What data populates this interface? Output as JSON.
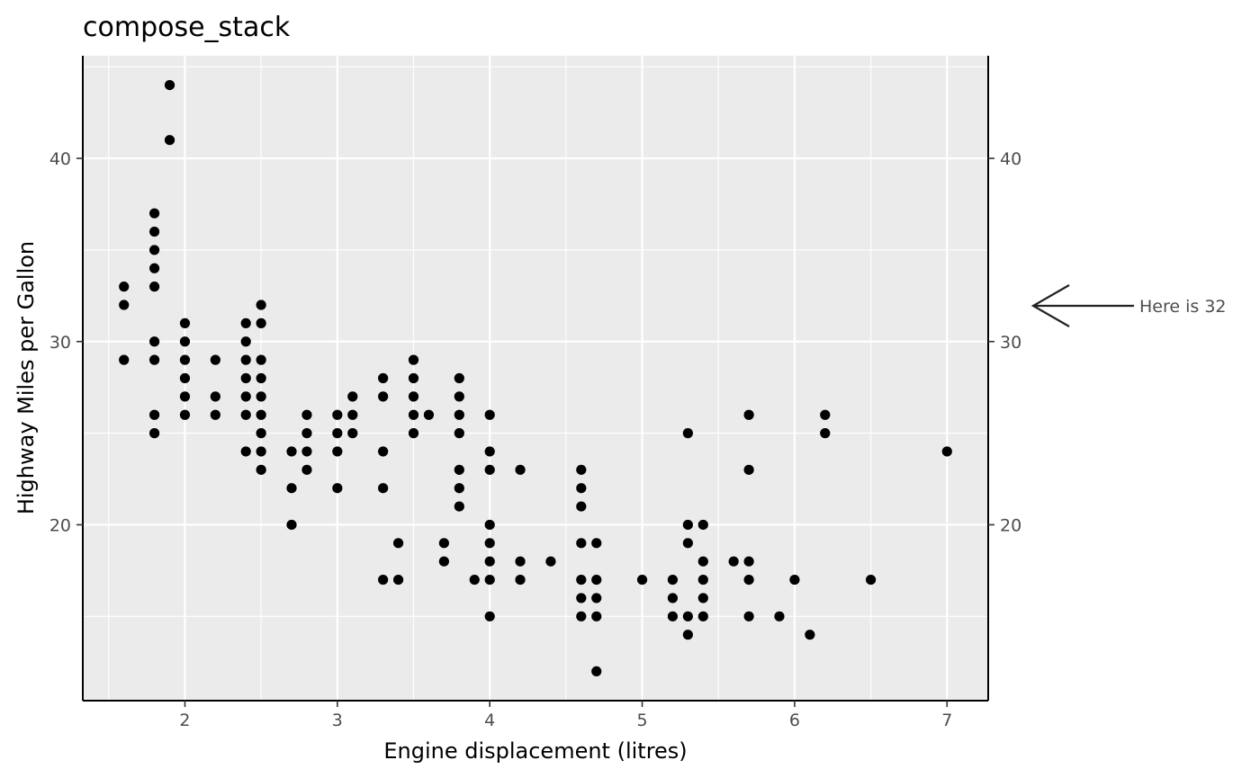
{
  "chart_data": {
    "type": "scatter",
    "title": "compose_stack",
    "xlabel": "Engine displacement (litres)",
    "ylabel": "Highway Miles per Gallon",
    "xlim": [
      1.33,
      7.27
    ],
    "ylim": [
      10.4,
      45.6
    ],
    "x_major_ticks": [
      2,
      3,
      4,
      5,
      6,
      7
    ],
    "y_major_ticks": [
      20,
      30,
      40
    ],
    "x_tick_labels": [
      "2",
      "3",
      "4",
      "5",
      "6",
      "7"
    ],
    "y_tick_labels": [
      "20",
      "30",
      "40"
    ],
    "secondary_y_tick_labels": [
      "20",
      "30",
      "40"
    ],
    "grid": true,
    "annotation": {
      "y": 32,
      "label": "Here is 32",
      "symbol": "arrow"
    },
    "colors": {
      "panel": "#ebebeb",
      "grid": "#ffffff",
      "points": "#000000",
      "axis": "#000000",
      "tick_text": "#4d4d4d"
    },
    "points": [
      [
        1.6,
        33
      ],
      [
        1.6,
        32
      ],
      [
        1.6,
        29
      ],
      [
        1.8,
        37
      ],
      [
        1.8,
        36
      ],
      [
        1.8,
        35
      ],
      [
        1.8,
        34
      ],
      [
        1.8,
        33
      ],
      [
        1.8,
        30
      ],
      [
        1.8,
        29
      ],
      [
        1.8,
        26
      ],
      [
        1.8,
        25
      ],
      [
        1.9,
        44
      ],
      [
        1.9,
        41
      ],
      [
        2.0,
        31
      ],
      [
        2.0,
        30
      ],
      [
        2.0,
        29
      ],
      [
        2.0,
        28
      ],
      [
        2.0,
        27
      ],
      [
        2.0,
        26
      ],
      [
        2.2,
        29
      ],
      [
        2.2,
        27
      ],
      [
        2.2,
        26
      ],
      [
        2.4,
        31
      ],
      [
        2.4,
        30
      ],
      [
        2.4,
        29
      ],
      [
        2.4,
        28
      ],
      [
        2.4,
        27
      ],
      [
        2.4,
        26
      ],
      [
        2.4,
        24
      ],
      [
        2.5,
        32
      ],
      [
        2.5,
        31
      ],
      [
        2.5,
        29
      ],
      [
        2.5,
        28
      ],
      [
        2.5,
        27
      ],
      [
        2.5,
        26
      ],
      [
        2.5,
        25
      ],
      [
        2.5,
        24
      ],
      [
        2.5,
        23
      ],
      [
        2.7,
        24
      ],
      [
        2.7,
        22
      ],
      [
        2.7,
        20
      ],
      [
        2.8,
        26
      ],
      [
        2.8,
        25
      ],
      [
        2.8,
        24
      ],
      [
        2.8,
        23
      ],
      [
        3.0,
        26
      ],
      [
        3.0,
        25
      ],
      [
        3.0,
        24
      ],
      [
        3.0,
        22
      ],
      [
        3.1,
        27
      ],
      [
        3.1,
        26
      ],
      [
        3.1,
        25
      ],
      [
        3.3,
        28
      ],
      [
        3.3,
        27
      ],
      [
        3.3,
        24
      ],
      [
        3.3,
        22
      ],
      [
        3.3,
        17
      ],
      [
        3.4,
        19
      ],
      [
        3.4,
        17
      ],
      [
        3.5,
        29
      ],
      [
        3.5,
        28
      ],
      [
        3.5,
        27
      ],
      [
        3.5,
        26
      ],
      [
        3.5,
        25
      ],
      [
        3.6,
        26
      ],
      [
        3.7,
        19
      ],
      [
        3.7,
        18
      ],
      [
        3.8,
        28
      ],
      [
        3.8,
        27
      ],
      [
        3.8,
        26
      ],
      [
        3.8,
        25
      ],
      [
        3.8,
        23
      ],
      [
        3.8,
        22
      ],
      [
        3.8,
        21
      ],
      [
        3.9,
        17
      ],
      [
        4.0,
        26
      ],
      [
        4.0,
        24
      ],
      [
        4.0,
        23
      ],
      [
        4.0,
        20
      ],
      [
        4.0,
        19
      ],
      [
        4.0,
        18
      ],
      [
        4.0,
        17
      ],
      [
        4.0,
        15
      ],
      [
        4.2,
        23
      ],
      [
        4.2,
        18
      ],
      [
        4.2,
        17
      ],
      [
        4.4,
        18
      ],
      [
        4.6,
        23
      ],
      [
        4.6,
        22
      ],
      [
        4.6,
        21
      ],
      [
        4.6,
        19
      ],
      [
        4.6,
        17
      ],
      [
        4.6,
        16
      ],
      [
        4.6,
        15
      ],
      [
        4.7,
        19
      ],
      [
        4.7,
        17
      ],
      [
        4.7,
        16
      ],
      [
        4.7,
        15
      ],
      [
        4.7,
        12
      ],
      [
        5.0,
        17
      ],
      [
        5.2,
        17
      ],
      [
        5.2,
        16
      ],
      [
        5.2,
        15
      ],
      [
        5.3,
        25
      ],
      [
        5.3,
        20
      ],
      [
        5.3,
        19
      ],
      [
        5.3,
        15
      ],
      [
        5.3,
        14
      ],
      [
        5.4,
        20
      ],
      [
        5.4,
        18
      ],
      [
        5.4,
        17
      ],
      [
        5.4,
        16
      ],
      [
        5.4,
        15
      ],
      [
        5.6,
        18
      ],
      [
        5.7,
        26
      ],
      [
        5.7,
        23
      ],
      [
        5.7,
        18
      ],
      [
        5.7,
        17
      ],
      [
        5.7,
        15
      ],
      [
        5.9,
        15
      ],
      [
        6.0,
        17
      ],
      [
        6.1,
        14
      ],
      [
        6.2,
        26
      ],
      [
        6.2,
        25
      ],
      [
        6.5,
        17
      ],
      [
        7.0,
        24
      ]
    ]
  }
}
